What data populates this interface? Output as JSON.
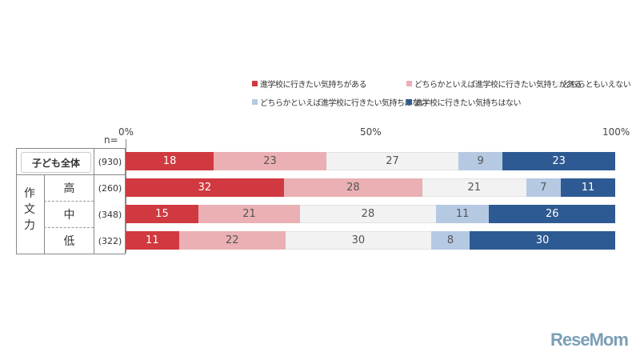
{
  "chart_data": {
    "type": "stacked-bar-horizontal",
    "n_label": "n=",
    "xlim": [
      0,
      100
    ],
    "ticks": [
      "0%",
      "50%",
      "100%"
    ],
    "legend_position": "top-right",
    "series": [
      {
        "name": "進学校に行きたい気持ちがある",
        "color": "#d0393f",
        "values": [
          18,
          32,
          15,
          11
        ]
      },
      {
        "name": "どちらかといえば進学校に行きたい気持ちがある",
        "color": "#eab0b3",
        "values": [
          23,
          28,
          21,
          22
        ]
      },
      {
        "name": "どちらともいえない",
        "color": "#f2f2f2",
        "values": [
          27,
          21,
          28,
          30
        ]
      },
      {
        "name": "どちらかといえば進学校に行きたい気持ちはない",
        "color": "#b5c9e3",
        "values": [
          9,
          7,
          11,
          8
        ]
      },
      {
        "name": "進学校に行きたい気持ちはない",
        "color": "#2e5a93",
        "values": [
          23,
          11,
          26,
          30
        ]
      }
    ],
    "rows": [
      {
        "label": "子ども全体",
        "n": "(930)"
      },
      {
        "label": "高",
        "n": "(260)"
      },
      {
        "label": "中",
        "n": "(348)"
      },
      {
        "label": "低",
        "n": "(322)"
      }
    ],
    "group_label": "作文力"
  },
  "logo": "ReseMom"
}
